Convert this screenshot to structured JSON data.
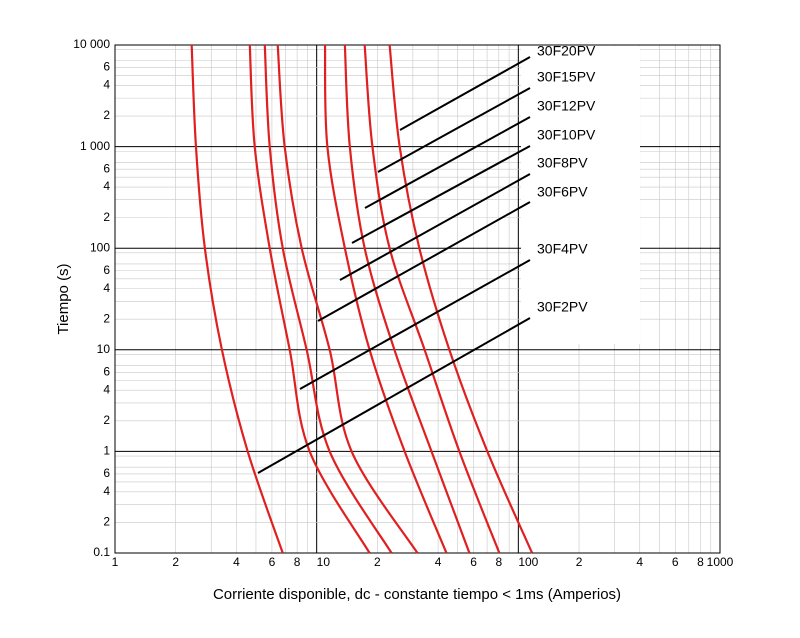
{
  "chart_data": {
    "type": "line",
    "x_label": "Corriente disponible, dc - constante tiempo < 1ms (Amperios)",
    "y_label": "Tiempo (s)",
    "log_x": true,
    "log_y": true,
    "grid": true,
    "minor_grid": true,
    "xlim": [
      1,
      1000
    ],
    "ylim": [
      0.1,
      10000
    ],
    "xticks": [
      1,
      2,
      4,
      6,
      8,
      10,
      {
        "value": 20,
        "label": "2"
      },
      {
        "value": 40,
        "label": "4"
      },
      {
        "value": 60,
        "label": "6"
      },
      {
        "value": 80,
        "label": "8"
      },
      100,
      {
        "value": 200,
        "label": "2"
      },
      {
        "value": 400,
        "label": "4"
      },
      {
        "value": 600,
        "label": "6"
      },
      {
        "value": 800,
        "label": "8"
      },
      1000
    ],
    "yticks": [
      0.1,
      {
        "value": 0.2,
        "label": "2"
      },
      {
        "value": 0.4,
        "label": "4"
      },
      {
        "value": 0.6,
        "label": "6"
      },
      1,
      2,
      4,
      6,
      10,
      {
        "value": 20,
        "label": "2"
      },
      {
        "value": 40,
        "label": "4"
      },
      {
        "value": 60,
        "label": "6"
      },
      100,
      {
        "value": 200,
        "label": "2"
      },
      {
        "value": 400,
        "label": "4"
      },
      {
        "value": 600,
        "label": "6"
      },
      {
        "value": 1000,
        "label": "1 000"
      },
      {
        "value": 2000,
        "label": "2"
      },
      {
        "value": 4000,
        "label": "4"
      },
      {
        "value": 6000,
        "label": "6"
      },
      {
        "value": 10000,
        "label": "10 000"
      }
    ],
    "series": [
      {
        "name": "30F2PV",
        "color": "#e02020",
        "x": [
          2.4,
          2.52,
          2.79,
          3.39,
          4.55,
          6.79
        ],
        "values": [
          10000,
          1000,
          100,
          10,
          1,
          0.1
        ]
      },
      {
        "name": "30F4PV",
        "color": "#e02020",
        "x": [
          4.66,
          4.93,
          5.85,
          7.35,
          9.23,
          18.3
        ],
        "values": [
          10000,
          1000,
          100,
          10,
          1,
          0.1
        ]
      },
      {
        "name": "30F6PV",
        "color": "#e02020",
        "x": [
          5.53,
          5.85,
          6.79,
          8.92,
          11.6,
          23.5
        ],
        "values": [
          10000,
          1000,
          100,
          10,
          1,
          0.1
        ]
      },
      {
        "name": "30F8PV",
        "color": "#e02020",
        "x": [
          6.41,
          6.94,
          8.43,
          11.6,
          14.9,
          31.6
        ],
        "values": [
          10000,
          1000,
          100,
          10,
          1,
          0.1
        ]
      },
      {
        "name": "30F10PV",
        "color": "#e02020",
        "x": [
          11.0,
          11.3,
          13.8,
          18.3,
          27.3,
          44.0
        ],
        "values": [
          10000,
          1000,
          100,
          10,
          1,
          0.1
        ]
      },
      {
        "name": "30F12PV",
        "color": "#e02020",
        "x": [
          13.8,
          14.6,
          17.3,
          24.3,
          37.1,
          57.2
        ],
        "values": [
          10000,
          1000,
          100,
          10,
          1,
          0.1
        ]
      },
      {
        "name": "30F15PV",
        "color": "#e02020",
        "x": [
          17.3,
          18.9,
          23.0,
          34.3,
          51.0,
          80.5
        ],
        "values": [
          10000,
          1000,
          100,
          10,
          1,
          0.1
        ]
      },
      {
        "name": "30F20PV",
        "color": "#e02020",
        "x": [
          23.0,
          25.8,
          32.3,
          45.5,
          70.2,
          117
        ],
        "values": [
          10000,
          1000,
          100,
          10,
          1,
          0.1
        ]
      }
    ]
  }
}
